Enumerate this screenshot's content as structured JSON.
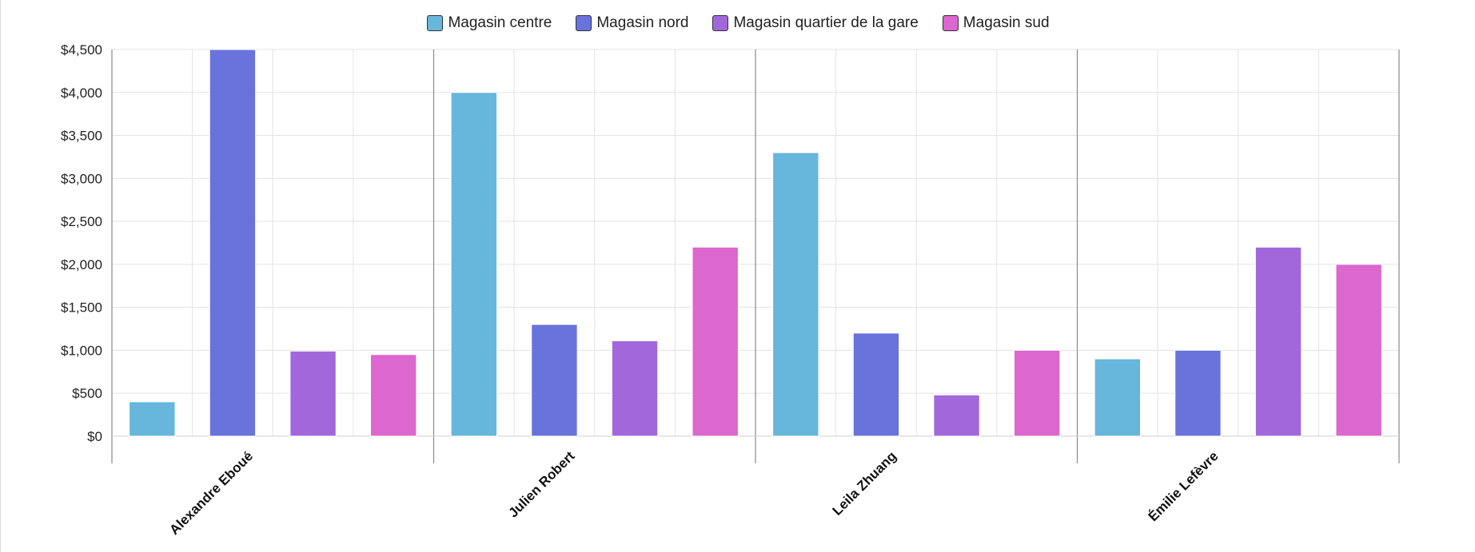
{
  "chart_data": {
    "type": "bar",
    "categories": [
      "Alexandre Eboué",
      "Julien Robert",
      "Leila Zhuang",
      "Émilie Lefèvre"
    ],
    "series": [
      {
        "name": "Magasin centre",
        "color": "#67b6dc",
        "values": [
          400,
          4000,
          3300,
          900
        ]
      },
      {
        "name": "Magasin nord",
        "color": "#6973dc",
        "values": [
          4500,
          1300,
          1200,
          1000
        ]
      },
      {
        "name": "Magasin quartier de la gare",
        "color": "#a367dc",
        "values": [
          990,
          1110,
          480,
          2200
        ]
      },
      {
        "name": "Magasin sud",
        "color": "#dc67ce",
        "values": [
          950,
          2200,
          1000,
          2000
        ]
      }
    ],
    "yticks": [
      "$0",
      "$500",
      "$1,000",
      "$1,500",
      "$2,000",
      "$2,500",
      "$3,000",
      "$3,500",
      "$4,000",
      "$4,500"
    ],
    "ylim": [
      0,
      4500
    ],
    "grid": true,
    "legend_position": "top-center"
  }
}
